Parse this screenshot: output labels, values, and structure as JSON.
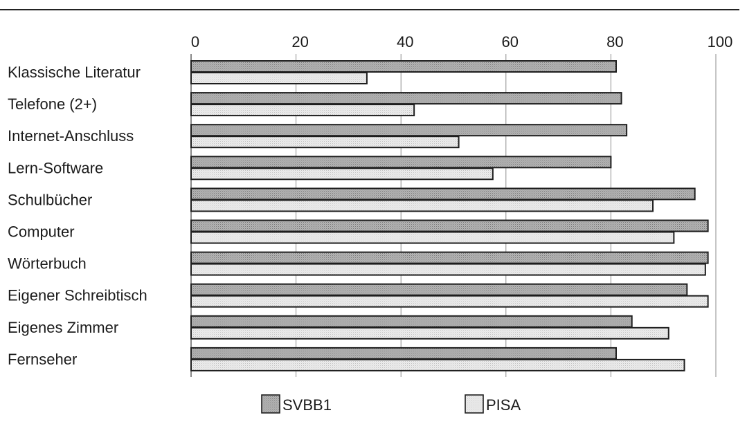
{
  "chart_data": {
    "type": "bar",
    "orientation": "horizontal",
    "categories": [
      "Klassische Literatur",
      "Telefone (2+)",
      "Internet-Anschluss",
      "Lern-Software",
      "Schulbücher",
      "Computer",
      "Wörterbuch",
      "Eigener Schreibtisch",
      "Eigenes Zimmer",
      "Fernseher"
    ],
    "series": [
      {
        "name": "SVBB1",
        "color": "#a9a9a9",
        "values": [
          81,
          82,
          83,
          80,
          96,
          98.5,
          98.5,
          94.5,
          84,
          81
        ]
      },
      {
        "name": "PISA",
        "color": "#e4e4e4",
        "values": [
          33.5,
          42.5,
          51,
          57.5,
          88,
          92,
          98,
          98.5,
          91,
          94
        ]
      }
    ],
    "xlim": [
      0,
      100
    ],
    "xticks": [
      "0",
      "20",
      "40",
      "60",
      "80",
      "100"
    ],
    "xtick_values": [
      0,
      20,
      40,
      60,
      80,
      100
    ],
    "grid": true,
    "legend_position": "bottom",
    "title": "",
    "xlabel": "",
    "ylabel": ""
  }
}
